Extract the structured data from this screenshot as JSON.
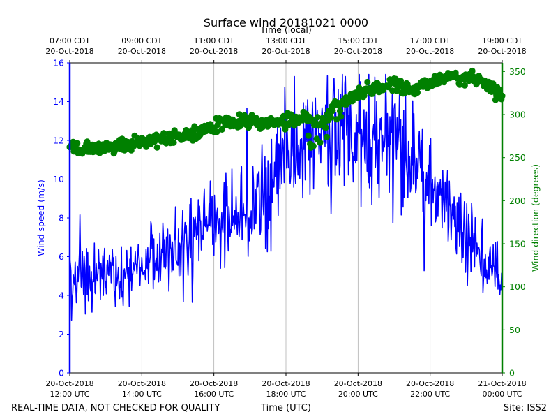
{
  "chart_data": {
    "type": "line",
    "title": "Surface wind 20181021 0000",
    "top_axis_label": "Time (local)",
    "bottom_axis_label": "Time (UTC)",
    "y_left_label": "Wind speed (m/s)",
    "y_right_label": "Wind direction (degrees)",
    "footer_left": "REAL-TIME DATA, NOT CHECKED FOR QUALITY",
    "footer_right": "Site: ISS2",
    "x_range_hours_utc": [
      12,
      24
    ],
    "y_left_range": [
      0,
      16
    ],
    "y_right_range": [
      0,
      360
    ],
    "y_left_ticks": [
      "0",
      "2",
      "4",
      "6",
      "8",
      "10",
      "12",
      "14",
      "16"
    ],
    "y_right_ticks": [
      "0",
      "50",
      "100",
      "150",
      "200",
      "250",
      "300",
      "350"
    ],
    "bottom_ticks": [
      {
        "hour": 12,
        "line1": "20-Oct-2018",
        "line2": "12:00 UTC"
      },
      {
        "hour": 14,
        "line1": "20-Oct-2018",
        "line2": "14:00 UTC"
      },
      {
        "hour": 16,
        "line1": "20-Oct-2018",
        "line2": "16:00 UTC"
      },
      {
        "hour": 18,
        "line1": "20-Oct-2018",
        "line2": "18:00 UTC"
      },
      {
        "hour": 20,
        "line1": "20-Oct-2018",
        "line2": "20:00 UTC"
      },
      {
        "hour": 22,
        "line1": "20-Oct-2018",
        "line2": "22:00 UTC"
      },
      {
        "hour": 24,
        "line1": "21-Oct-2018",
        "line2": "00:00 UTC"
      }
    ],
    "top_ticks": [
      {
        "hour": 12,
        "line1": "07:00 CDT",
        "line2": "20-Oct-2018"
      },
      {
        "hour": 14,
        "line1": "09:00 CDT",
        "line2": "20-Oct-2018"
      },
      {
        "hour": 16,
        "line1": "11:00 CDT",
        "line2": "20-Oct-2018"
      },
      {
        "hour": 18,
        "line1": "13:00 CDT",
        "line2": "20-Oct-2018"
      },
      {
        "hour": 20,
        "line1": "15:00 CDT",
        "line2": "20-Oct-2018"
      },
      {
        "hour": 22,
        "line1": "17:00 CDT",
        "line2": "20-Oct-2018"
      },
      {
        "hour": 24,
        "line1": "19:00 CDT",
        "line2": "20-Oct-2018"
      }
    ],
    "series": [
      {
        "name": "Wind speed (m/s)",
        "axis": "left",
        "style": "line",
        "color": "#0000ff",
        "x_hours": [
          12.0,
          12.5,
          13.0,
          13.5,
          14.0,
          14.5,
          15.0,
          15.5,
          16.0,
          16.5,
          17.0,
          17.5,
          18.0,
          18.5,
          19.0,
          19.5,
          20.0,
          20.5,
          21.0,
          21.5,
          22.0,
          22.5,
          23.0,
          23.5,
          24.0
        ],
        "values": [
          4.8,
          5.0,
          5.0,
          5.2,
          5.6,
          6.0,
          6.6,
          7.4,
          8.0,
          8.2,
          8.5,
          9.6,
          11.0,
          12.0,
          12.4,
          12.6,
          12.0,
          11.6,
          12.4,
          11.4,
          9.4,
          8.6,
          7.2,
          5.8,
          4.9
        ]
      },
      {
        "name": "Wind direction (degrees)",
        "axis": "right",
        "style": "scatter",
        "color": "#008000",
        "x_hours": [
          12.0,
          12.5,
          13.0,
          13.5,
          14.0,
          14.5,
          15.0,
          15.5,
          16.0,
          16.5,
          17.0,
          17.5,
          18.0,
          18.5,
          19.0,
          19.5,
          20.0,
          20.5,
          21.0,
          21.5,
          22.0,
          22.5,
          23.0,
          23.5,
          24.0
        ],
        "values": [
          260,
          260,
          261,
          264,
          268,
          271,
          274,
          277,
          287,
          292,
          293,
          289,
          292,
          298,
          288,
          314,
          325,
          332,
          335,
          327,
          338,
          343,
          343,
          337,
          320
        ]
      }
    ]
  }
}
